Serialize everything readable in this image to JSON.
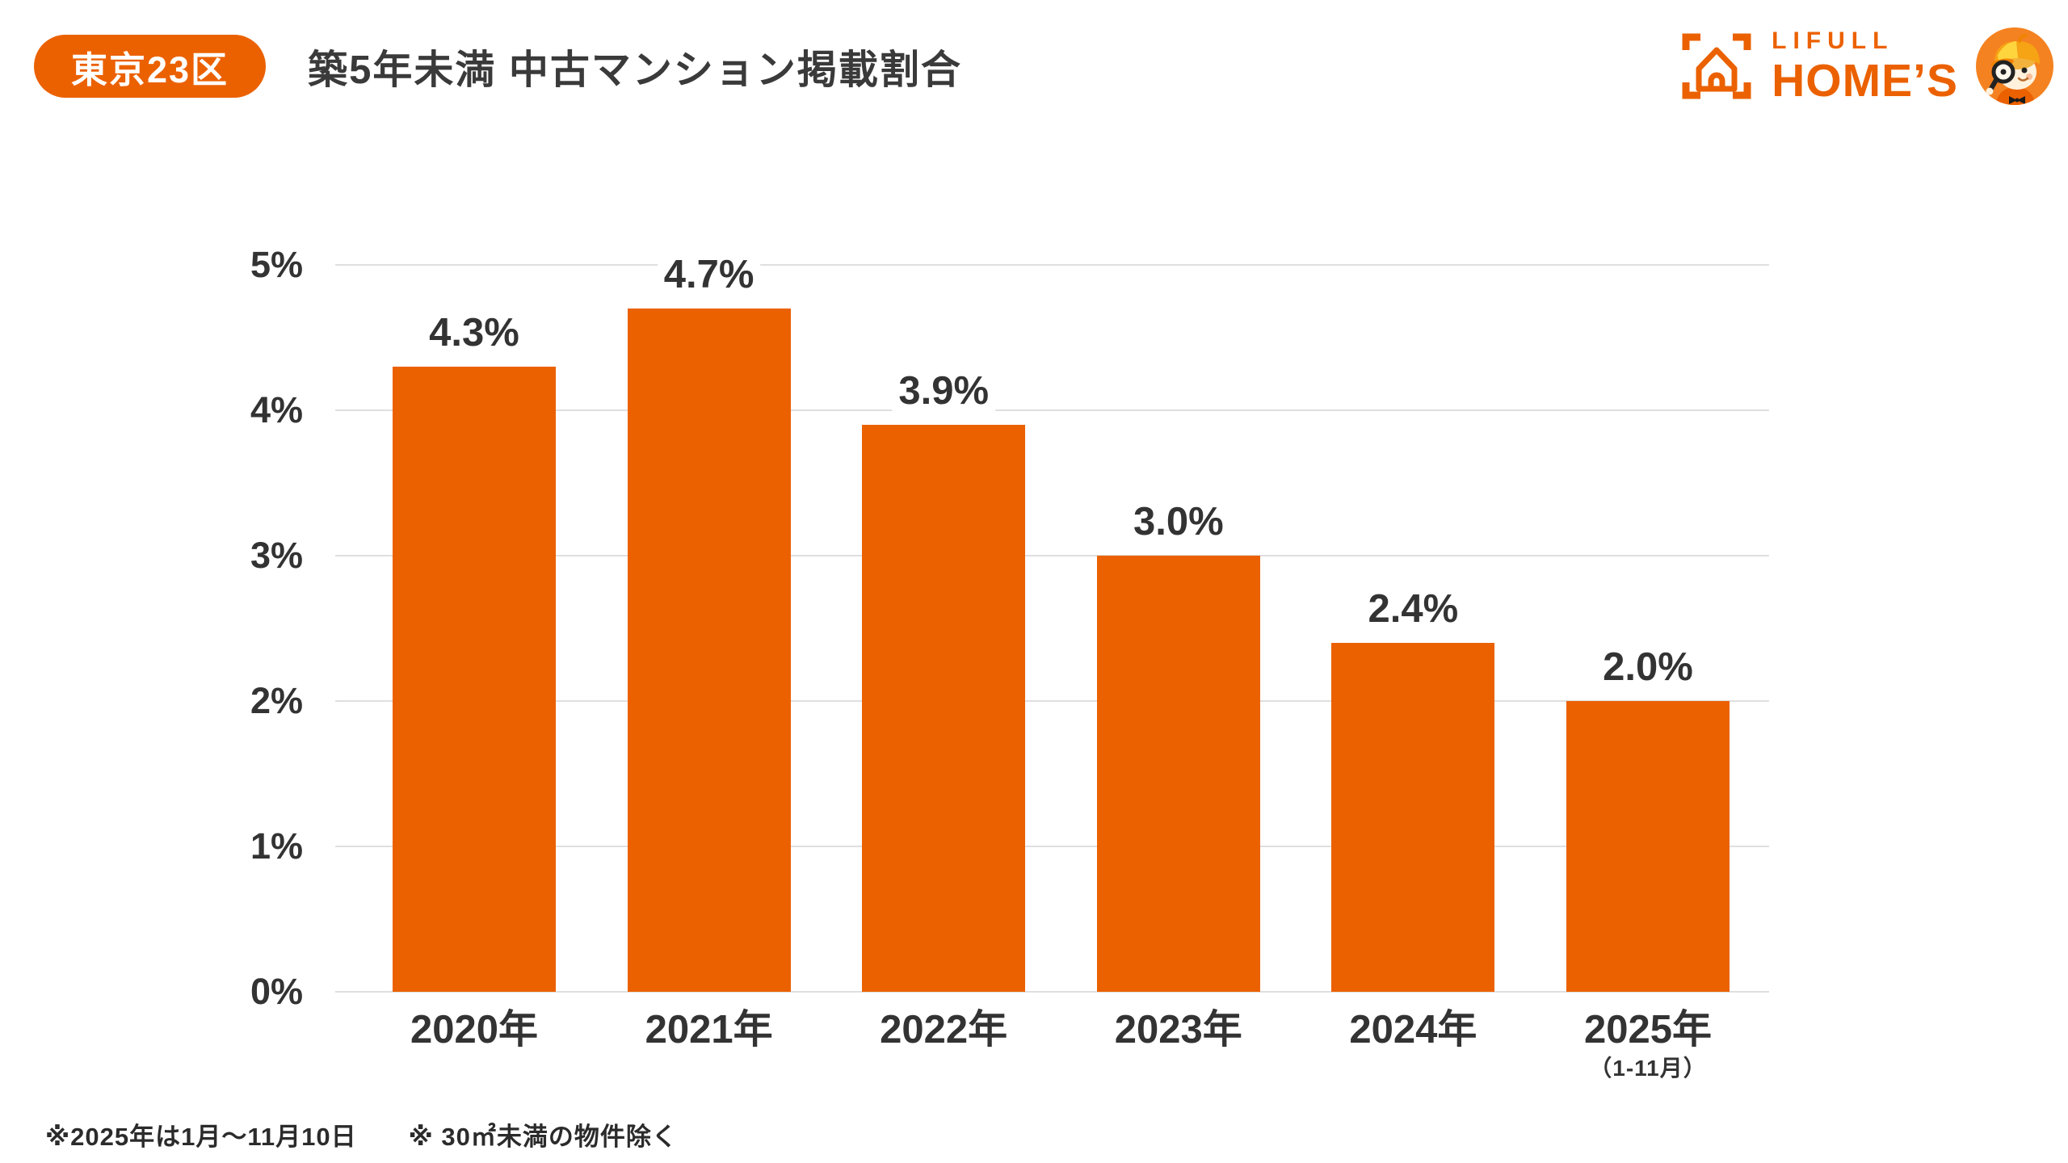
{
  "page": {
    "background": "#FFFFFF"
  },
  "header": {
    "badge": {
      "label": "東京23区",
      "bg": "#EB6100",
      "text_color": "#FFFFFF"
    },
    "title": "築5年未満 中古マンション掲載割合"
  },
  "logo": {
    "brand_top": "LIFULL",
    "brand_bottom": "HOME’S",
    "color": "#EB6100",
    "house_icon": "house-viewfinder-icon",
    "mascot_icon": "homeskun-mascot-icon"
  },
  "chart_data": {
    "type": "bar",
    "title": "築5年未満 中古マンション掲載割合",
    "region": "東京23区",
    "categories": [
      "2020年",
      "2021年",
      "2022年",
      "2023年",
      "2024年",
      "2025年"
    ],
    "category_subnotes": [
      "",
      "",
      "",
      "",
      "",
      "（1-11月）"
    ],
    "values": [
      4.3,
      4.7,
      3.9,
      3.0,
      2.4,
      2.0
    ],
    "value_labels": [
      "4.3%",
      "4.7%",
      "3.9%",
      "3.0%",
      "2.4%",
      "2.0%"
    ],
    "ylim": [
      0,
      5
    ],
    "yticks": [
      {
        "value": 5,
        "label": "5%"
      },
      {
        "value": 4,
        "label": "4%"
      },
      {
        "value": 3,
        "label": "3%"
      },
      {
        "value": 2,
        "label": "2%"
      },
      {
        "value": 1,
        "label": "1%"
      },
      {
        "value": 0,
        "label": "0%"
      }
    ],
    "grid": true,
    "legend": "none",
    "bar_color": "#EB6100",
    "gridline_color": "#DFDFDF",
    "label_color": "#333333"
  },
  "footnotes": [
    "※2025年は1月〜11月10日",
    "※ 30㎡未満の物件除く"
  ]
}
